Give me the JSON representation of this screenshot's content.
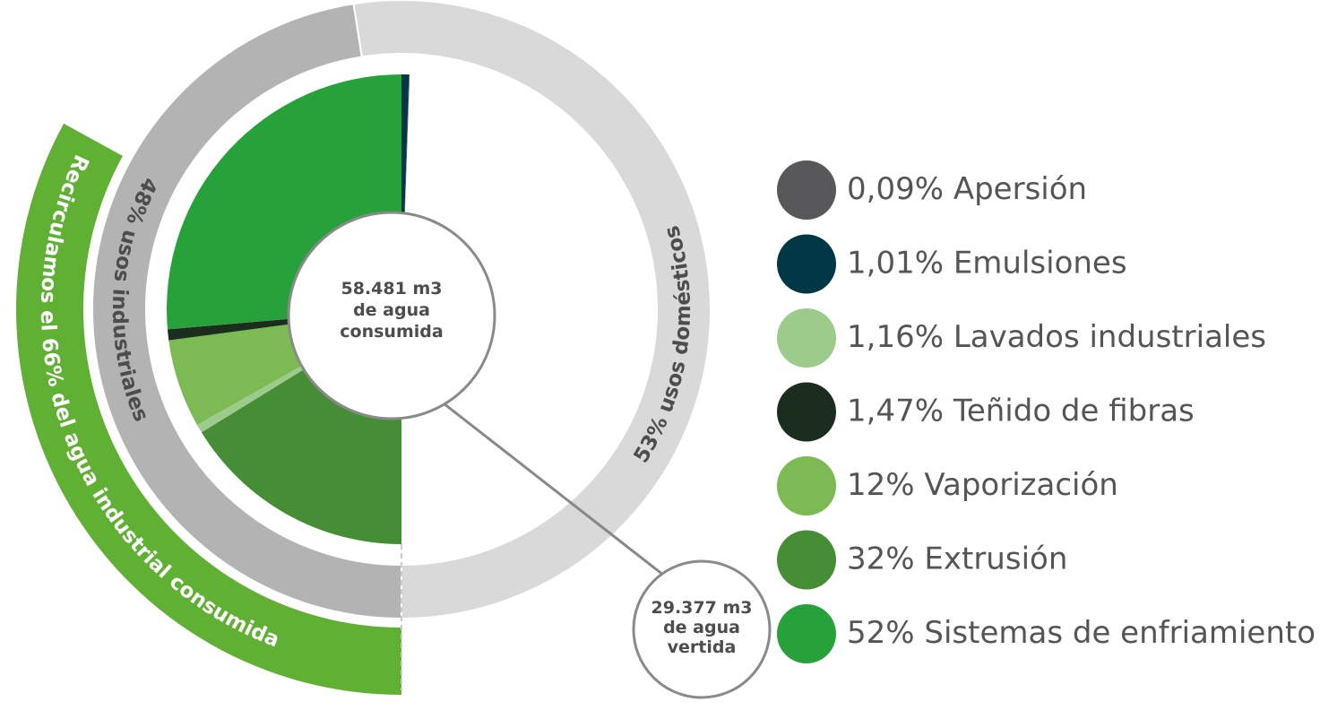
{
  "chart_data": {
    "type": "sunburst",
    "center_label": [
      "58.481 m3",
      "de agua",
      "consumida"
    ],
    "callout_label": [
      "29.377 m3",
      "de agua",
      "vertida"
    ],
    "rings": [
      {
        "label": "48% usos industriales",
        "value": 48,
        "color": "#b3b3b3"
      },
      {
        "label": "53% usos domésticos",
        "value": 53,
        "color": "#d9d9d9"
      }
    ],
    "recirculation": {
      "label": "Recirculamos el 66% del agua industrial consumida",
      "value": 66,
      "color": "#5fb033"
    },
    "series": [
      {
        "name": "Apersión",
        "value": 0.09,
        "value_label": "0,09%",
        "color": "#58585a"
      },
      {
        "name": "Emulsiones",
        "value": 1.01,
        "value_label": "1,01%",
        "color": "#023745"
      },
      {
        "name": "Lavados industriales",
        "value": 1.16,
        "value_label": "1,16%",
        "color": "#9ccb8c"
      },
      {
        "name": "Teñido de fibras",
        "value": 1.47,
        "value_label": "1,47%",
        "color": "#1b2e1e"
      },
      {
        "name": "Vaporización",
        "value": 12,
        "value_label": "12%",
        "color": "#7cba53"
      },
      {
        "name": "Extrusión",
        "value": 32,
        "value_label": "32%",
        "color": "#458e35"
      },
      {
        "name": "Sistemas de enfriamiento",
        "value": 52,
        "value_label": "52%",
        "color": "#27a23a"
      }
    ]
  }
}
